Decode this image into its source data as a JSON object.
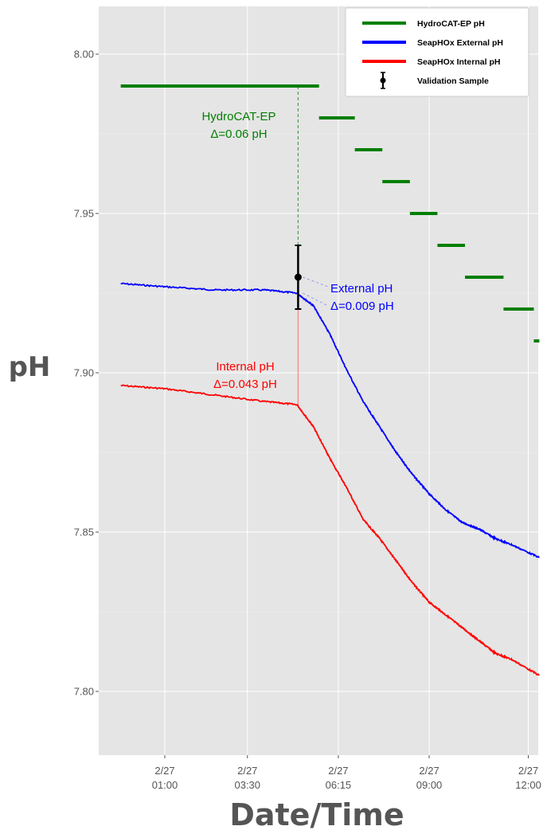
{
  "chart_data": {
    "type": "line",
    "xlabel": "Date/Time",
    "ylabel": "pH",
    "x_ticks": [
      {
        "time": "2/27 01:00",
        "line1": "2/27",
        "line2": "01:00"
      },
      {
        "time": "2/27 03:30",
        "line1": "2/27",
        "line2": "03:30"
      },
      {
        "time": "2/27 06:15",
        "line1": "2/27",
        "line2": "06:15"
      },
      {
        "time": "2/27 09:00",
        "line1": "2/27",
        "line2": "09:00"
      },
      {
        "time": "2/27 12:00",
        "line1": "2/27",
        "line2": "12:00"
      }
    ],
    "y_ticks": [
      "8.00",
      "7.95",
      "7.90",
      "7.85",
      "7.80"
    ],
    "xlim_hours": [
      -1.0,
      12.3
    ],
    "ylim": [
      7.78,
      8.015
    ],
    "grid": true,
    "background": "#e5e5e5",
    "legend_position": "top-right",
    "series": [
      {
        "name": "HydroCAT-EP pH",
        "color": "#007f00",
        "style": "step",
        "segments": [
          {
            "start": "23:40",
            "end": "05:40",
            "ph": 7.99
          },
          {
            "start": "05:40",
            "end": "06:45",
            "ph": 7.98
          },
          {
            "start": "06:45",
            "end": "07:35",
            "ph": 7.97
          },
          {
            "start": "07:35",
            "end": "08:25",
            "ph": 7.96
          },
          {
            "start": "08:25",
            "end": "09:15",
            "ph": 7.95
          },
          {
            "start": "09:15",
            "end": "10:05",
            "ph": 7.94
          },
          {
            "start": "10:05",
            "end": "11:15",
            "ph": 7.93
          },
          {
            "start": "11:15",
            "end": "12:10",
            "ph": 7.92
          },
          {
            "start": "12:10",
            "end": "12:20",
            "ph": 7.91
          }
        ]
      },
      {
        "name": "SeapHOx External pH",
        "color": "#0000ff",
        "points": [
          {
            "time": "23:40",
            "ph": 7.928
          },
          {
            "time": "01:00",
            "ph": 7.927
          },
          {
            "time": "02:30",
            "ph": 7.926
          },
          {
            "time": "04:00",
            "ph": 7.926
          },
          {
            "time": "05:00",
            "ph": 7.925
          },
          {
            "time": "05:30",
            "ph": 7.921
          },
          {
            "time": "06:00",
            "ph": 7.912
          },
          {
            "time": "06:30",
            "ph": 7.901
          },
          {
            "time": "07:00",
            "ph": 7.891
          },
          {
            "time": "07:30",
            "ph": 7.883
          },
          {
            "time": "08:00",
            "ph": 7.875
          },
          {
            "time": "08:30",
            "ph": 7.868
          },
          {
            "time": "09:00",
            "ph": 7.862
          },
          {
            "time": "09:30",
            "ph": 7.857
          },
          {
            "time": "10:00",
            "ph": 7.853
          },
          {
            "time": "10:30",
            "ph": 7.851
          },
          {
            "time": "11:00",
            "ph": 7.848
          },
          {
            "time": "11:30",
            "ph": 7.846
          },
          {
            "time": "12:20",
            "ph": 7.842
          }
        ]
      },
      {
        "name": "SeapHOx Internal pH",
        "color": "#ff0000",
        "points": [
          {
            "time": "23:40",
            "ph": 7.896
          },
          {
            "time": "01:00",
            "ph": 7.895
          },
          {
            "time": "02:30",
            "ph": 7.893
          },
          {
            "time": "04:00",
            "ph": 7.891
          },
          {
            "time": "05:00",
            "ph": 7.89
          },
          {
            "time": "05:30",
            "ph": 7.883
          },
          {
            "time": "06:00",
            "ph": 7.873
          },
          {
            "time": "06:30",
            "ph": 7.864
          },
          {
            "time": "07:00",
            "ph": 7.854
          },
          {
            "time": "07:30",
            "ph": 7.848
          },
          {
            "time": "08:00",
            "ph": 7.841
          },
          {
            "time": "08:30",
            "ph": 7.834
          },
          {
            "time": "09:00",
            "ph": 7.828
          },
          {
            "time": "09:30",
            "ph": 7.824
          },
          {
            "time": "10:00",
            "ph": 7.82
          },
          {
            "time": "10:30",
            "ph": 7.816
          },
          {
            "time": "11:00",
            "ph": 7.812
          },
          {
            "time": "11:30",
            "ph": 7.81
          },
          {
            "time": "12:20",
            "ph": 7.805
          }
        ]
      },
      {
        "name": "Validation Sample",
        "color": "#000000",
        "style": "errorbar",
        "points": [
          {
            "time": "05:02",
            "ph": 7.93,
            "err": 0.01
          }
        ]
      }
    ],
    "annotations": [
      {
        "lines": [
          "HydroCAT-EP",
          "Δ=0.06 pH"
        ],
        "color": "#007f00"
      },
      {
        "lines": [
          "External pH",
          "Δ=0.009 pH"
        ],
        "color": "#0000ff"
      },
      {
        "lines": [
          "Internal pH",
          "Δ=0.043 pH"
        ],
        "color": "#ff0000"
      }
    ]
  }
}
